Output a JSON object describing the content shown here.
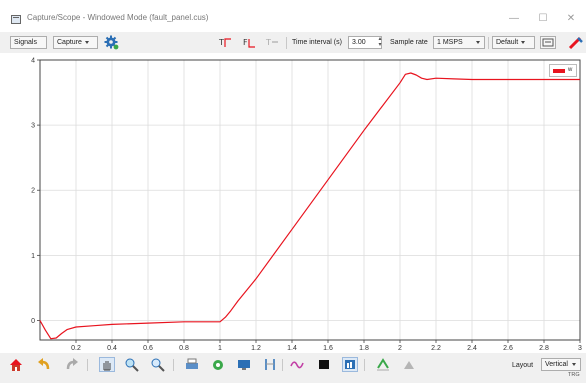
{
  "window": {
    "title": "Capture/Scope - Windowed Mode (fault_panel.cus)",
    "minimize": "—",
    "maximize": "☐",
    "close": "✕"
  },
  "toolbar": {
    "signals_label": "Signals",
    "capture_label": "Capture",
    "time_interval_label": "Time interval (s)",
    "time_interval_value": "3.00",
    "sample_rate_label": "Sample rate",
    "sample_rate_value": "1 MSPS",
    "default_label": "Default"
  },
  "bottom": {
    "layout_label": "Layout",
    "layout_value": "Vertical",
    "trg_label": "TRG"
  },
  "chart_data": {
    "type": "line",
    "xlim": [
      0,
      3
    ],
    "ylim": [
      -0.3,
      4
    ],
    "x_ticks": [
      "0.2",
      "0.4",
      "0.6",
      "0.8",
      "1",
      "1.2",
      "1.4",
      "1.6",
      "1.8",
      "2",
      "2.2",
      "2.4",
      "2.6",
      "2.8",
      "3"
    ],
    "y_ticks": [
      "0",
      "1",
      "2",
      "3",
      "4"
    ],
    "grid": true,
    "legend_position": "top-right",
    "series": [
      {
        "name": "w",
        "color": "#e8141f",
        "x": [
          0,
          0.03,
          0.06,
          0.09,
          0.12,
          0.15,
          0.2,
          0.3,
          0.4,
          0.6,
          0.8,
          1.0,
          1.03,
          1.06,
          1.1,
          1.2,
          1.4,
          1.6,
          1.8,
          2.0,
          2.03,
          2.06,
          2.09,
          2.12,
          2.15,
          2.2,
          2.3,
          2.4,
          2.6,
          2.8,
          3.0
        ],
        "y": [
          0,
          -0.15,
          -0.28,
          -0.27,
          -0.2,
          -0.14,
          -0.1,
          -0.08,
          -0.06,
          -0.04,
          -0.02,
          -0.02,
          0.05,
          0.15,
          0.3,
          0.64,
          1.4,
          2.16,
          2.92,
          3.65,
          3.78,
          3.8,
          3.77,
          3.72,
          3.7,
          3.72,
          3.71,
          3.7,
          3.7,
          3.7,
          3.7
        ]
      }
    ]
  }
}
